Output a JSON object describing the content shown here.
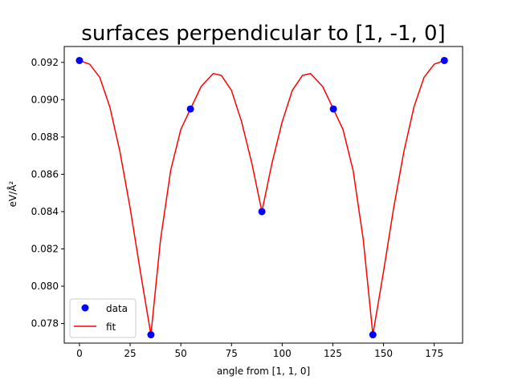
{
  "chart_data": {
    "type": "line",
    "title": "surfaces perpendicular to [1, -1, 0]",
    "xlabel": "angle from [1, 1, 0]",
    "ylabel": "eV/Å²",
    "xlim": [
      -7.5,
      189
    ],
    "ylim": [
      0.07695,
      0.09285
    ],
    "x_ticks": [
      0,
      25,
      50,
      75,
      100,
      125,
      150,
      175
    ],
    "y_ticks": [
      0.078,
      0.08,
      0.082,
      0.084,
      0.086,
      0.088,
      0.09,
      0.092
    ],
    "y_tick_labels": [
      "0.078",
      "0.080",
      "0.082",
      "0.084",
      "0.086",
      "0.088",
      "0.090",
      "0.092"
    ],
    "grid": false,
    "legend_position": "lower-left",
    "series": [
      {
        "name": "data",
        "kind": "scatter",
        "color": "#0000ff",
        "x": [
          0,
          35.26,
          54.74,
          90,
          125.26,
          144.74,
          180
        ],
        "y": [
          0.0921,
          0.0774,
          0.0895,
          0.084,
          0.0895,
          0.0774,
          0.0921
        ]
      },
      {
        "name": "fit",
        "kind": "line",
        "color": "#ff0000",
        "x": [
          0,
          5,
          10,
          15,
          20,
          25,
          30,
          35.26,
          40,
          45,
          50,
          54.74,
          60,
          66,
          70,
          75,
          80,
          85,
          90,
          95,
          100,
          105,
          110,
          114,
          120,
          125.26,
          130,
          135,
          140,
          144.74,
          150,
          155,
          160,
          165,
          170,
          175,
          180
        ],
        "y": [
          0.0921,
          0.0919,
          0.0912,
          0.0896,
          0.0872,
          0.0842,
          0.0808,
          0.0774,
          0.0825,
          0.0862,
          0.0884,
          0.0895,
          0.0907,
          0.0914,
          0.0913,
          0.0905,
          0.0888,
          0.0866,
          0.084,
          0.0866,
          0.0888,
          0.0905,
          0.0913,
          0.0914,
          0.0907,
          0.0895,
          0.0884,
          0.0862,
          0.0825,
          0.0774,
          0.0808,
          0.0842,
          0.0872,
          0.0896,
          0.0912,
          0.0919,
          0.0921
        ]
      }
    ]
  }
}
